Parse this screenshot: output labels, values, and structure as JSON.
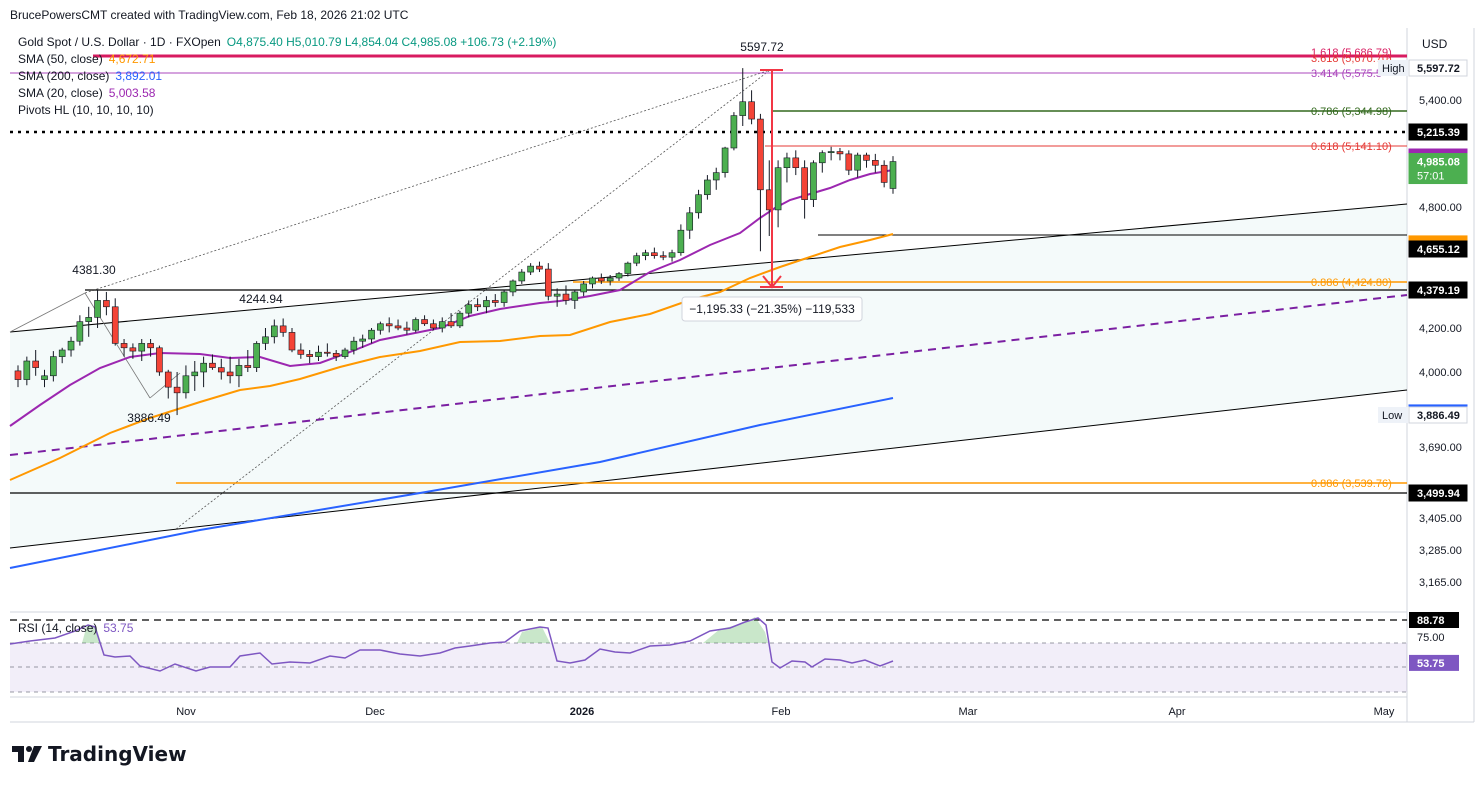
{
  "header": {
    "credit": "BrucePowersCMT created with TradingView.com, Feb 18, 2026 21:02 UTC"
  },
  "legend": {
    "symbol": "Gold Spot / U.S. Dollar · 1D · FXOpen",
    "ohlc": "O4,875.40  H5,010.79  L4,854.04  C4,985.08  +106.73 (+2.19%)",
    "sma50_label": "SMA (50, close)",
    "sma50_value": "4,672.71",
    "sma200_label": "SMA (200, close)",
    "sma200_value": "3,892.01",
    "sma20_label": "SMA (20, close)",
    "sma20_value": "5,003.58",
    "pivots_label": "Pivots HL (10, 10, 10, 10)"
  },
  "colors": {
    "up": "#4caf50",
    "down": "#f44336",
    "sma50": "#ff9800",
    "sma200": "#2962ff",
    "sma20": "#9c27b0",
    "rsi": "#7e57c2",
    "fib_red": "#e53935",
    "fib_green": "#33691e"
  },
  "axis": {
    "currency": "USD",
    "ticks": [
      "5,400.00",
      "4,800.00",
      "4,200.00",
      "4,000.00",
      "3,690.00",
      "3,405.00",
      "3,285.00",
      "3,165.00"
    ],
    "tick_values": [
      5400,
      4800,
      4200,
      4000,
      3690,
      3405,
      3285,
      3165
    ],
    "badges": [
      {
        "text": "5,597.72",
        "value": 5597.72,
        "bg": "#ffffff",
        "fg": "#131722",
        "tag": "High"
      },
      {
        "text": "5,215.39",
        "value": 5215.39,
        "bg": "#000000",
        "fg": "#ffffff"
      },
      {
        "text": "5,003.58",
        "value": 5003.58,
        "bg": "#9c27b0",
        "fg": "#ffffff"
      },
      {
        "text": "4,985.08",
        "value": 4985.08,
        "bg": "#4caf50",
        "fg": "#ffffff",
        "sub": "57:01"
      },
      {
        "text": "4,672.71",
        "value": 4672.71,
        "bg": "#ff9800",
        "fg": "#000000"
      },
      {
        "text": "4,655.12",
        "value": 4655.12,
        "bg": "#000000",
        "fg": "#ffffff"
      },
      {
        "text": "4,379.19",
        "value": 4379.19,
        "bg": "#000000",
        "fg": "#ffffff"
      },
      {
        "text": "3,892.01",
        "value": 3892.01,
        "bg": "#2962ff",
        "fg": "#ffffff"
      },
      {
        "text": "3,886.49",
        "value": 3886.49,
        "bg": "#ffffff",
        "fg": "#131722",
        "tag": "Low"
      },
      {
        "text": "3,499.94",
        "value": 3499.94,
        "bg": "#000000",
        "fg": "#ffffff"
      }
    ],
    "time_labels": [
      "Nov",
      "Dec",
      "2026",
      "Feb",
      "Mar",
      "Apr",
      "May"
    ],
    "rsi_ticks": [
      {
        "text": "88.78",
        "value": 88.78,
        "bg": "#000000",
        "fg": "#ffffff"
      },
      {
        "text": "75.00",
        "value": 75
      },
      {
        "text": "53.75",
        "value": 53.75,
        "bg": "#7e57c2",
        "fg": "#ffffff"
      }
    ]
  },
  "annotations": {
    "high_label": "5597.72",
    "pivot_4381": "4381.30",
    "pivot_4244": "4244.94",
    "pivot_3886": "3886.49",
    "measure": "−1,195.33 (−21.35%) −119,533",
    "fib_1618": "1.618 (5,686.79)",
    "fib_3618": "3.618 (5,670.70)",
    "fib_3414": "3.414 (5,575.5",
    "fib_786": "0.786 (5,344.98)",
    "fib_618": "0.618 (5,141.10)",
    "fib_886a": "0.886 (4,424.80)",
    "fib_886b": "0.886 (3,539.76)"
  },
  "rsi": {
    "label": "RSI (14, close)",
    "value": "53.75"
  },
  "brand": {
    "name": "TradingView"
  },
  "chart_data": {
    "type": "candlestick",
    "title": "Gold Spot / U.S. Dollar · 1D · FXOpen",
    "ylim": [
      3080,
      5640
    ],
    "candles": [
      [
        4005,
        4030,
        3960,
        3980
      ],
      [
        3980,
        4070,
        3965,
        4050
      ],
      [
        4050,
        4100,
        3990,
        4020
      ],
      [
        3980,
        4010,
        3960,
        3990
      ],
      [
        3990,
        4095,
        3975,
        4070
      ],
      [
        4070,
        4110,
        4040,
        4100
      ],
      [
        4100,
        4160,
        4070,
        4140
      ],
      [
        4140,
        4260,
        4120,
        4230
      ],
      [
        4230,
        4300,
        4160,
        4250
      ],
      [
        4250,
        4381,
        4200,
        4330
      ],
      [
        4330,
        4370,
        4260,
        4300
      ],
      [
        4300,
        4340,
        4120,
        4130
      ],
      [
        4130,
        4150,
        4070,
        4110
      ],
      [
        4110,
        4130,
        4060,
        4095
      ],
      [
        4095,
        4150,
        4050,
        4130
      ],
      [
        4130,
        4150,
        4070,
        4110
      ],
      [
        4110,
        4120,
        3990,
        4000
      ],
      [
        4000,
        4010,
        3930,
        3960
      ],
      [
        3960,
        4000,
        3886,
        3945
      ],
      [
        3945,
        4030,
        3930,
        3990
      ],
      [
        3990,
        4050,
        3950,
        4000
      ],
      [
        4000,
        4070,
        3960,
        4040
      ],
      [
        4040,
        4080,
        4010,
        4020
      ],
      [
        4020,
        4060,
        3980,
        4000
      ],
      [
        4000,
        4070,
        3970,
        3990
      ],
      [
        3990,
        4060,
        3960,
        4030
      ],
      [
        4030,
        4100,
        4000,
        4020
      ],
      [
        4020,
        4140,
        4000,
        4130
      ],
      [
        4130,
        4200,
        4100,
        4160
      ],
      [
        4160,
        4240,
        4130,
        4210
      ],
      [
        4210,
        4245,
        4160,
        4180
      ],
      [
        4180,
        4200,
        4090,
        4100
      ],
      [
        4100,
        4130,
        4060,
        4080
      ],
      [
        4080,
        4100,
        4040,
        4070
      ],
      [
        4070,
        4120,
        4050,
        4090
      ],
      [
        4090,
        4130,
        4070,
        4085
      ],
      [
        4085,
        4100,
        4050,
        4070
      ],
      [
        4070,
        4110,
        4060,
        4100
      ],
      [
        4100,
        4160,
        4080,
        4140
      ],
      [
        4140,
        4170,
        4110,
        4150
      ],
      [
        4150,
        4200,
        4130,
        4190
      ],
      [
        4190,
        4230,
        4170,
        4220
      ],
      [
        4220,
        4250,
        4180,
        4210
      ],
      [
        4210,
        4240,
        4190,
        4200
      ],
      [
        4200,
        4230,
        4170,
        4190
      ],
      [
        4190,
        4250,
        4180,
        4240
      ],
      [
        4240,
        4260,
        4210,
        4220
      ],
      [
        4220,
        4240,
        4190,
        4200
      ],
      [
        4200,
        4250,
        4180,
        4230
      ],
      [
        4230,
        4270,
        4200,
        4210
      ],
      [
        4210,
        4280,
        4200,
        4270
      ],
      [
        4270,
        4330,
        4250,
        4310
      ],
      [
        4310,
        4340,
        4280,
        4300
      ],
      [
        4300,
        4350,
        4270,
        4330
      ],
      [
        4330,
        4360,
        4300,
        4320
      ],
      [
        4320,
        4380,
        4300,
        4370
      ],
      [
        4370,
        4450,
        4350,
        4440
      ],
      [
        4440,
        4520,
        4420,
        4500
      ],
      [
        4500,
        4560,
        4480,
        4540
      ],
      [
        4540,
        4570,
        4500,
        4520
      ],
      [
        4520,
        4560,
        4330,
        4350
      ],
      [
        4350,
        4390,
        4300,
        4360
      ],
      [
        4360,
        4410,
        4310,
        4330
      ],
      [
        4330,
        4380,
        4290,
        4370
      ],
      [
        4370,
        4440,
        4350,
        4420
      ],
      [
        4420,
        4470,
        4390,
        4460
      ],
      [
        4460,
        4490,
        4420,
        4440
      ],
      [
        4440,
        4480,
        4410,
        4460
      ],
      [
        4460,
        4500,
        4440,
        4490
      ],
      [
        4490,
        4570,
        4470,
        4560
      ],
      [
        4560,
        4630,
        4540,
        4610
      ],
      [
        4610,
        4650,
        4580,
        4630
      ],
      [
        4630,
        4660,
        4590,
        4610
      ],
      [
        4610,
        4640,
        4580,
        4600
      ],
      [
        4600,
        4650,
        4570,
        4630
      ],
      [
        4630,
        4740,
        4610,
        4720
      ],
      [
        4720,
        4800,
        4690,
        4780
      ],
      [
        4780,
        4870,
        4760,
        4850
      ],
      [
        4850,
        4930,
        4830,
        4910
      ],
      [
        4910,
        4960,
        4870,
        4940
      ],
      [
        4940,
        5090,
        4920,
        5080
      ],
      [
        5080,
        5330,
        5060,
        5310
      ],
      [
        5310,
        5597,
        5250,
        5390
      ],
      [
        5390,
        5460,
        5260,
        5290
      ],
      [
        5290,
        5320,
        4640,
        4870
      ],
      [
        4870,
        4990,
        4700,
        4790
      ],
      [
        4790,
        4990,
        4730,
        4960
      ],
      [
        4960,
        5040,
        4900,
        5000
      ],
      [
        5000,
        5060,
        4930,
        4960
      ],
      [
        4960,
        4990,
        4760,
        4830
      ],
      [
        4830,
        4990,
        4800,
        4980
      ],
      [
        4980,
        5060,
        4940,
        5040
      ],
      [
        5040,
        5090,
        4990,
        5050
      ],
      [
        5050,
        5080,
        4990,
        5030
      ],
      [
        5030,
        5060,
        4930,
        4950
      ],
      [
        4950,
        5040,
        4920,
        5020
      ],
      [
        5020,
        5040,
        4960,
        4990
      ],
      [
        4990,
        5030,
        4940,
        4970
      ],
      [
        4970,
        4990,
        4880,
        4900
      ],
      [
        4875.4,
        5010.79,
        4854.04,
        4985.08
      ]
    ],
    "rsi_last": 53.75
  }
}
